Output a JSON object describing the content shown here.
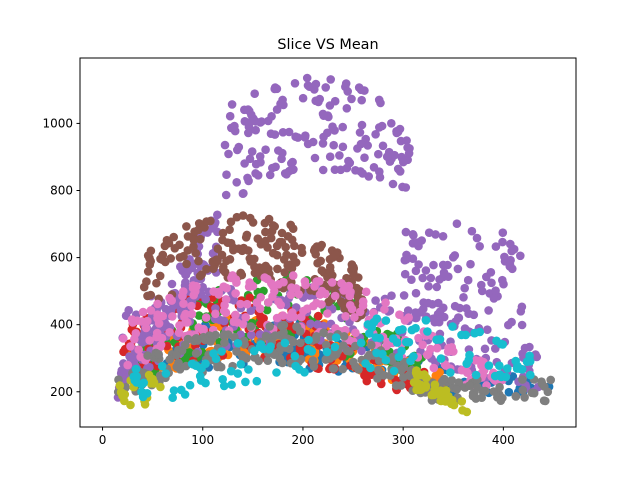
{
  "chart_data": {
    "type": "scatter",
    "title": "Slice VS Mean",
    "xlabel": "",
    "ylabel": "",
    "xlim": [
      -22.5,
      472.5
    ],
    "ylim": [
      95,
      1195
    ],
    "x_ticks": [
      0,
      100,
      200,
      300,
      400
    ],
    "y_ticks": [
      200,
      400,
      600,
      800,
      1000
    ],
    "grid": false,
    "legend": "none",
    "series": [
      {
        "color": "#1f77b4",
        "clusters": [
          {
            "x": [
              20,
              300
            ],
            "y_lo": [
              180,
              230
            ],
            "y_hi": [
              280,
              320
            ],
            "peak_x": 150,
            "peak_lo": 280,
            "peak_hi": 420,
            "n": 120
          },
          {
            "x": [
              300,
              450
            ],
            "y_lo": [
              200,
              180
            ],
            "y_hi": [
              300,
              230
            ],
            "n": 40
          }
        ]
      },
      {
        "color": "#ff7f0e",
        "clusters": [
          {
            "x": [
              20,
              340
            ],
            "y_lo": [
              190,
              200
            ],
            "y_hi": [
              280,
              260
            ],
            "peak_x": 160,
            "peak_lo": 300,
            "peak_hi": 430,
            "n": 140
          }
        ]
      },
      {
        "color": "#2ca02c",
        "clusters": [
          {
            "x": [
              30,
              320
            ],
            "y_lo": [
              200,
              240
            ],
            "y_hi": [
              300,
              320
            ],
            "peak_x": 170,
            "peak_lo": 330,
            "peak_hi": 560,
            "n": 150
          }
        ]
      },
      {
        "color": "#d62728",
        "clusters": [
          {
            "x": [
              20,
              330
            ],
            "y_lo": [
              170,
              210
            ],
            "y_hi": [
              290,
              260
            ],
            "peak_x": 130,
            "peak_lo": 300,
            "peak_hi": 500,
            "n": 170
          }
        ]
      },
      {
        "color": "#9467bd",
        "clusters": [
          {
            "x": [
              15,
              115
            ],
            "y_lo": [
              180,
              560
            ],
            "y_hi": [
              260,
              770
            ],
            "n": 140
          },
          {
            "x": [
              120,
              310
            ],
            "y_lo": [
              760,
              770
            ],
            "y_hi": [
              1060,
              900
            ],
            "peak_x": 220,
            "peak_lo": 860,
            "peak_hi": 1150,
            "n": 160
          },
          {
            "x": [
              300,
              420
            ],
            "y_lo": [
              380,
              370
            ],
            "y_hi": [
              720,
              680
            ],
            "n": 90
          },
          {
            "x": [
              20,
              440
            ],
            "y_lo": [
              220,
              200
            ],
            "y_hi": [
              480,
              330
            ],
            "peak_x": 200,
            "peak_lo": 330,
            "peak_hi": 520,
            "n": 200
          }
        ]
      },
      {
        "color": "#8c564b",
        "clusters": [
          {
            "x": [
              40,
              260
            ],
            "y_lo": [
              400,
              420
            ],
            "y_hi": [
              600,
              580
            ],
            "peak_x": 140,
            "peak_lo": 520,
            "peak_hi": 730,
            "n": 200
          }
        ]
      },
      {
        "color": "#e377c2",
        "clusters": [
          {
            "x": [
              20,
              400
            ],
            "y_lo": [
              180,
              220
            ],
            "y_hi": [
              320,
              300
            ],
            "peak_x": 170,
            "peak_lo": 380,
            "peak_hi": 560,
            "n": 220
          }
        ]
      },
      {
        "color": "#7f7f7f",
        "clusters": [
          {
            "x": [
              15,
              330
            ],
            "y_lo": [
              170,
              170
            ],
            "y_hi": [
              260,
              240
            ],
            "peak_x": 170,
            "peak_lo": 280,
            "peak_hi": 400,
            "n": 200
          },
          {
            "x": [
              330,
              450
            ],
            "y_lo": [
              170,
              170
            ],
            "y_hi": [
              240,
              240
            ],
            "n": 50
          }
        ]
      },
      {
        "color": "#bcbd22",
        "clusters": [
          {
            "x": [
              15,
              60
            ],
            "y_lo": [
              135,
              180
            ],
            "y_hi": [
              230,
              280
            ],
            "n": 20
          },
          {
            "x": [
              310,
              365
            ],
            "y_lo": [
              200,
              135
            ],
            "y_hi": [
              280,
              160
            ],
            "n": 35
          }
        ]
      },
      {
        "color": "#17becf",
        "clusters": [
          {
            "x": [
              30,
              430
            ],
            "y_lo": [
              180,
              200
            ],
            "y_hi": [
              280,
              270
            ],
            "peak_x": 280,
            "peak_lo": 260,
            "peak_hi": 420,
            "n": 120
          }
        ]
      }
    ]
  }
}
